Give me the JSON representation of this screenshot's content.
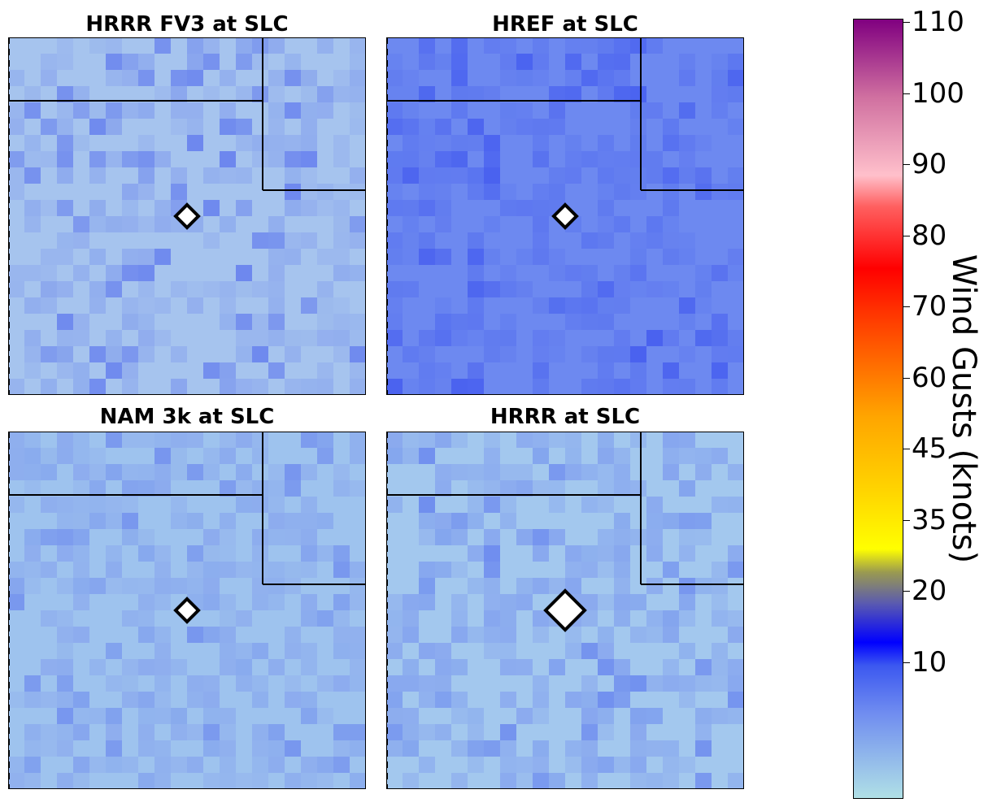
{
  "panels": [
    {
      "title": "HRRR FV3 at SLC",
      "base": "#a6c4ee",
      "mid": "#8aa6ee",
      "dark": "#5a73ee"
    },
    {
      "title": "HREF at SLC",
      "base": "#6d89f0",
      "mid": "#5a74ef",
      "dark": "#3e55ef"
    },
    {
      "title": "NAM 3k at SLC",
      "base": "#9ec3ee",
      "mid": "#86a3ee",
      "dark": "#6a86ee"
    },
    {
      "title": "HRRR at SLC",
      "base": "#a3c8ee",
      "mid": "#7e9bef",
      "dark": "#5d79ef"
    }
  ],
  "marker_icon": "diamond-station-marker",
  "colorbar": {
    "label": "Wind Gusts (knots)",
    "ticks": [
      "110",
      "100",
      "90",
      "80",
      "70",
      "60",
      "45",
      "35",
      "20",
      "10"
    ]
  }
}
